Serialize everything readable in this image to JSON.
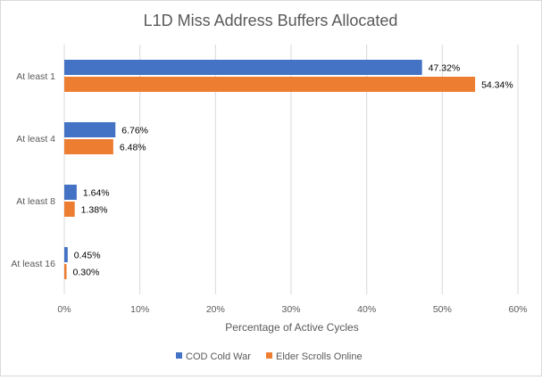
{
  "chart_data": {
    "type": "bar",
    "orientation": "horizontal",
    "title": "L1D Miss Address Buffers Allocated",
    "xlabel": "Percentage of Active Cycles",
    "ylabel": "",
    "categories": [
      "At least 1",
      "At least 4",
      "At least 8",
      "At least 16"
    ],
    "series": [
      {
        "name": "COD Cold War",
        "color": "#4472c4",
        "values": [
          47.32,
          6.76,
          1.64,
          0.45
        ],
        "labels": [
          "47.32%",
          "6.76%",
          "1.64%",
          "0.45%"
        ]
      },
      {
        "name": "Elder Scrolls Online",
        "color": "#ed7d31",
        "values": [
          54.34,
          6.48,
          1.38,
          0.3
        ],
        "labels": [
          "54.34%",
          "6.48%",
          "1.38%",
          "0.30%"
        ]
      }
    ],
    "xlim": [
      0,
      60
    ],
    "xticks": [
      0,
      10,
      20,
      30,
      40,
      50,
      60
    ],
    "xtick_labels": [
      "0%",
      "10%",
      "20%",
      "30%",
      "40%",
      "50%",
      "60%"
    ],
    "grid": "vertical",
    "legend": "bottom"
  }
}
